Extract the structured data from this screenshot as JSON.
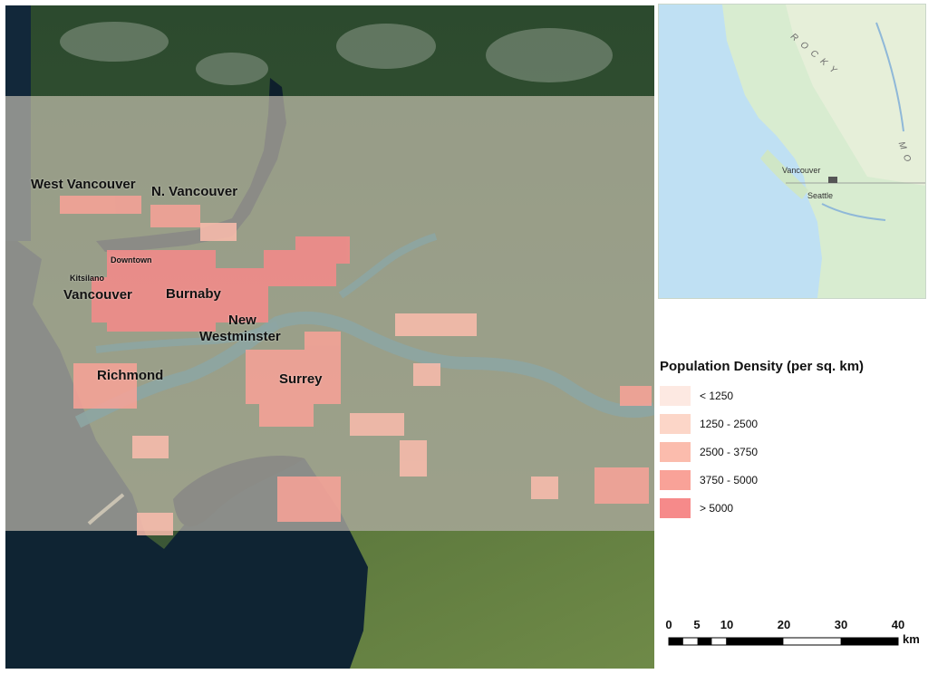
{
  "map": {
    "place_labels": [
      {
        "id": "west-vancouver",
        "text": "West Vancouver"
      },
      {
        "id": "north-vancouver",
        "text": "N. Vancouver"
      },
      {
        "id": "downtown",
        "text": "Downtown"
      },
      {
        "id": "kitsilano",
        "text": "Kitsilano"
      },
      {
        "id": "vancouver",
        "text": "Vancouver"
      },
      {
        "id": "burnaby",
        "text": "Burnaby"
      },
      {
        "id": "new-westminster-1",
        "text": "New"
      },
      {
        "id": "new-westminster-2",
        "text": "Westminster"
      },
      {
        "id": "richmond",
        "text": "Richmond"
      },
      {
        "id": "surrey",
        "text": "Surrey"
      }
    ]
  },
  "inset": {
    "labels": {
      "vancouver": "Vancouver",
      "seattle": "Seattle",
      "rocky": "R O C K Y",
      "rocky_side": "M O"
    }
  },
  "legend": {
    "title": "Population Density (per sq. km)",
    "items": [
      {
        "label": "< 1250",
        "color": "#fde9e2"
      },
      {
        "label": "1250 - 2500",
        "color": "#fcd6c8"
      },
      {
        "label": "2500 - 3750",
        "color": "#fbbcad"
      },
      {
        "label": "3750 - 5000",
        "color": "#f9a298"
      },
      {
        "label": "> 5000",
        "color": "#f68a8a"
      }
    ]
  },
  "scale": {
    "ticks": [
      "0",
      "5",
      "10",
      "20",
      "30",
      "40"
    ],
    "unit": "km"
  }
}
